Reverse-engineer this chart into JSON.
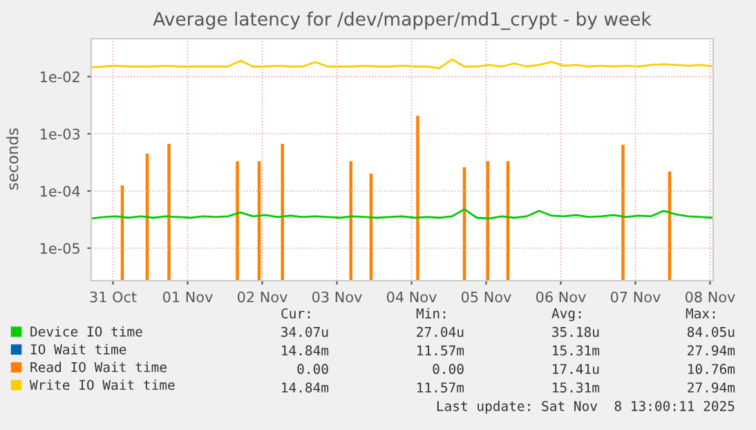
{
  "chart_data": {
    "type": "line",
    "title": "Average latency for /dev/mapper/md1_crypt - by week",
    "ylabel": "seconds",
    "log": "y",
    "ylim": [
      2.7e-06,
      0.046
    ],
    "yticks": [
      {
        "value": 1e-05,
        "label": "1e-05"
      },
      {
        "value": 0.0001,
        "label": "1e-04"
      },
      {
        "value": 0.001,
        "label": "1e-03"
      },
      {
        "value": 0.01,
        "label": "1e-02"
      }
    ],
    "xlim": [
      "2025-10-31T05:00",
      "2025-11-08T13:00"
    ],
    "xticks": [
      {
        "value": "2025-10-31T12:00",
        "label": "31 Oct"
      },
      {
        "value": "2025-11-01T12:00",
        "label": "01 Nov"
      },
      {
        "value": "2025-11-02T12:00",
        "label": "02 Nov"
      },
      {
        "value": "2025-11-03T12:00",
        "label": "03 Nov"
      },
      {
        "value": "2025-11-04T12:00",
        "label": "04 Nov"
      },
      {
        "value": "2025-11-05T12:00",
        "label": "05 Nov"
      },
      {
        "value": "2025-11-06T12:00",
        "label": "06 Nov"
      },
      {
        "value": "2025-11-07T12:00",
        "label": "07 Nov"
      },
      {
        "value": "2025-11-08T12:00",
        "label": "08 Nov"
      }
    ],
    "grid": true,
    "legend": "bottom",
    "x": [
      "2025-10-31T05:00",
      "2025-10-31T09:00",
      "2025-10-31T13:00",
      "2025-10-31T17:00",
      "2025-10-31T21:00",
      "2025-11-01T01:00",
      "2025-11-01T05:00",
      "2025-11-01T09:00",
      "2025-11-01T13:00",
      "2025-11-01T17:00",
      "2025-11-01T21:00",
      "2025-11-02T01:00",
      "2025-11-02T05:00",
      "2025-11-02T09:00",
      "2025-11-02T13:00",
      "2025-11-02T17:00",
      "2025-11-02T21:00",
      "2025-11-03T01:00",
      "2025-11-03T05:00",
      "2025-11-03T09:00",
      "2025-11-03T13:00",
      "2025-11-03T17:00",
      "2025-11-03T21:00",
      "2025-11-04T01:00",
      "2025-11-04T05:00",
      "2025-11-04T09:00",
      "2025-11-04T13:00",
      "2025-11-04T17:00",
      "2025-11-04T21:00",
      "2025-11-05T01:00",
      "2025-11-05T05:00",
      "2025-11-05T09:00",
      "2025-11-05T13:00",
      "2025-11-05T17:00",
      "2025-11-05T21:00",
      "2025-11-06T01:00",
      "2025-11-06T05:00",
      "2025-11-06T09:00",
      "2025-11-06T13:00",
      "2025-11-06T17:00",
      "2025-11-06T21:00",
      "2025-11-07T01:00",
      "2025-11-07T05:00",
      "2025-11-07T09:00",
      "2025-11-07T13:00",
      "2025-11-07T17:00",
      "2025-11-07T21:00",
      "2025-11-08T01:00",
      "2025-11-08T05:00",
      "2025-11-08T09:00",
      "2025-11-08T13:00"
    ],
    "series": [
      {
        "name": "Device IO time",
        "color": "#00cc00",
        "values": [
          3.3e-05,
          3.5e-05,
          3.6e-05,
          3.4e-05,
          3.6e-05,
          3.4e-05,
          3.6e-05,
          3.5e-05,
          3.4e-05,
          3.6e-05,
          3.5e-05,
          3.6e-05,
          4.2e-05,
          3.6e-05,
          3.8e-05,
          3.5e-05,
          3.7e-05,
          3.5e-05,
          3.6e-05,
          3.5e-05,
          3.4e-05,
          3.6e-05,
          3.5e-05,
          3.4e-05,
          3.5e-05,
          3.6e-05,
          3.4e-05,
          3.5e-05,
          3.4e-05,
          3.6e-05,
          4.8e-05,
          3.4e-05,
          3.3e-05,
          3.6e-05,
          3.4e-05,
          3.6e-05,
          4.5e-05,
          3.7e-05,
          3.6e-05,
          3.8e-05,
          3.5e-05,
          3.6e-05,
          3.8e-05,
          3.5e-05,
          3.7e-05,
          3.6e-05,
          4.5e-05,
          3.9e-05,
          3.6e-05,
          3.5e-05,
          3.4e-05
        ]
      },
      {
        "name": "IO Wait time",
        "color": "#0066b3",
        "values": [
          null,
          null,
          null,
          null,
          null,
          null,
          null,
          null,
          null,
          null,
          null,
          null,
          null,
          null,
          null,
          null,
          null,
          null,
          null,
          null,
          null,
          null,
          null,
          null,
          null,
          null,
          null,
          null,
          null,
          null,
          null,
          null,
          null,
          null,
          null,
          null,
          null,
          null,
          null,
          null,
          null,
          null,
          null,
          null,
          null,
          null,
          null,
          null,
          null,
          null,
          null
        ]
      },
      {
        "name": "Read IO Wait time",
        "color": "#ff8000",
        "type": "bar",
        "x": [
          "2025-10-31T15:00",
          "2025-10-31T23:00",
          "2025-11-01T06:00",
          "2025-11-02T04:00",
          "2025-11-02T11:00",
          "2025-11-02T18:30",
          "2025-11-03T16:30",
          "2025-11-03T23:00",
          "2025-11-04T14:00",
          "2025-11-05T05:00",
          "2025-11-05T12:30",
          "2025-11-05T19:00",
          "2025-11-07T08:00",
          "2025-11-07T23:00"
        ],
        "values": [
          0.000125,
          0.00045,
          0.00067,
          0.00033,
          0.00033,
          0.00067,
          0.00033,
          0.0002,
          0.00207,
          0.00026,
          0.00033,
          0.00033,
          0.00064,
          0.00022
        ]
      },
      {
        "name": "Write IO Wait time",
        "color": "#ffcc00",
        "values": [
          0.0145,
          0.015,
          0.0155,
          0.015,
          0.015,
          0.015,
          0.0155,
          0.015,
          0.015,
          0.015,
          0.015,
          0.015,
          0.019,
          0.015,
          0.015,
          0.0155,
          0.015,
          0.015,
          0.018,
          0.015,
          0.015,
          0.015,
          0.0155,
          0.015,
          0.015,
          0.0155,
          0.015,
          0.015,
          0.014,
          0.02,
          0.015,
          0.015,
          0.016,
          0.015,
          0.017,
          0.015,
          0.016,
          0.018,
          0.0155,
          0.016,
          0.015,
          0.0155,
          0.015,
          0.0155,
          0.015,
          0.016,
          0.0165,
          0.016,
          0.0155,
          0.016,
          0.015
        ]
      }
    ],
    "annotations": [
      "Cur:",
      "Min:",
      "Avg:",
      "Max:",
      "34.07u",
      "27.04u",
      "35.18u",
      "84.05u",
      "14.84m",
      "11.57m",
      "15.31m",
      "27.94m",
      "0.00",
      "0.00",
      "17.41u",
      "10.76m",
      "14.84m",
      "11.57m",
      "15.31m",
      "27.94m",
      "Last update: Sat Nov  8 13:00:11 2025"
    ]
  }
}
